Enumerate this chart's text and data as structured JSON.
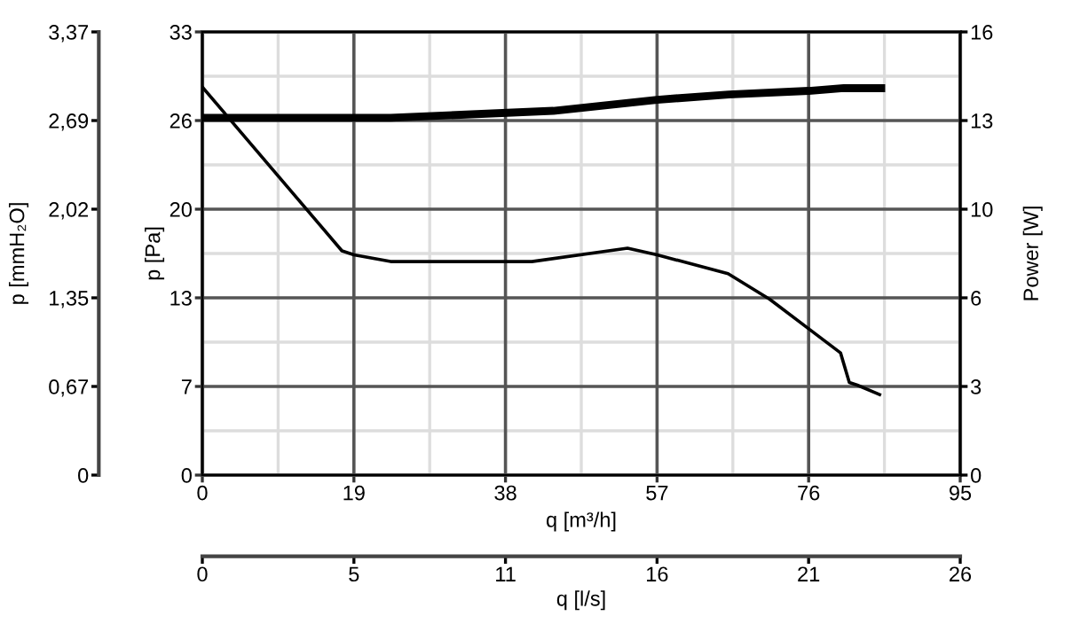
{
  "chart_data": {
    "type": "line",
    "xlabel": "q [m³/h]",
    "ylabel": "p [Pa]",
    "y2label": "Power [W]",
    "y3label": "p [mmH₂O]",
    "x2label": "q [l/s]",
    "xlim": [
      0,
      95
    ],
    "xticks": [
      0,
      19,
      38,
      57,
      76,
      95
    ],
    "ylim": [
      0,
      33
    ],
    "yticks": [
      0,
      {
        "value": 6.6,
        "label": "7"
      },
      {
        "value": 13.2,
        "label": "13"
      },
      {
        "value": 19.8,
        "label": "20"
      },
      {
        "value": 26.4,
        "label": "26"
      },
      33
    ],
    "y2lim": [
      0,
      16
    ],
    "y2ticks": [
      0,
      {
        "value": 3.2,
        "label": "3"
      },
      {
        "value": 6.4,
        "label": "6"
      },
      {
        "value": 9.6,
        "label": "10"
      },
      {
        "value": 12.8,
        "label": "13"
      },
      16
    ],
    "y3lim": [
      0,
      3.365
    ],
    "y3ticks": [
      0,
      {
        "value": 0.673,
        "label": "0,67"
      },
      {
        "value": 1.346,
        "label": "1,35"
      },
      {
        "value": 2.019,
        "label": "2,02"
      },
      {
        "value": 2.692,
        "label": "2,69"
      },
      {
        "value": 3.365,
        "label": "3,37"
      }
    ],
    "x2lim": [
      0,
      26.39
    ],
    "x2ticks": [
      0,
      {
        "value": 5.278,
        "label": "5"
      },
      {
        "value": 10.556,
        "label": "11"
      },
      {
        "value": 15.833,
        "label": "16"
      },
      {
        "value": 21.111,
        "label": "21"
      },
      {
        "value": 26.39,
        "label": "26"
      }
    ],
    "grid": true,
    "marker": "none",
    "line_style": "solid",
    "series": [
      {
        "color": "#000000",
        "x": [
          0,
          17.5,
          19,
          23.6,
          41.3,
          53.3,
          57,
          65.9,
          71.1,
          76,
          80,
          81.1,
          82.1,
          84.9
        ],
        "values": [
          28.9,
          16.7,
          16.4,
          15.9,
          15.9,
          16.9,
          16.4,
          15.0,
          13.1,
          10.9,
          9.1,
          6.9,
          6.7,
          6.0
        ]
      },
      {
        "color": "#000000",
        "axis": "y2",
        "x": [
          0,
          23.6,
          44,
          57,
          66,
          76,
          80.4,
          85.1
        ],
        "values": [
          12.9,
          12.9,
          13.15,
          13.55,
          13.74,
          13.87,
          13.97,
          13.97
        ]
      }
    ]
  }
}
